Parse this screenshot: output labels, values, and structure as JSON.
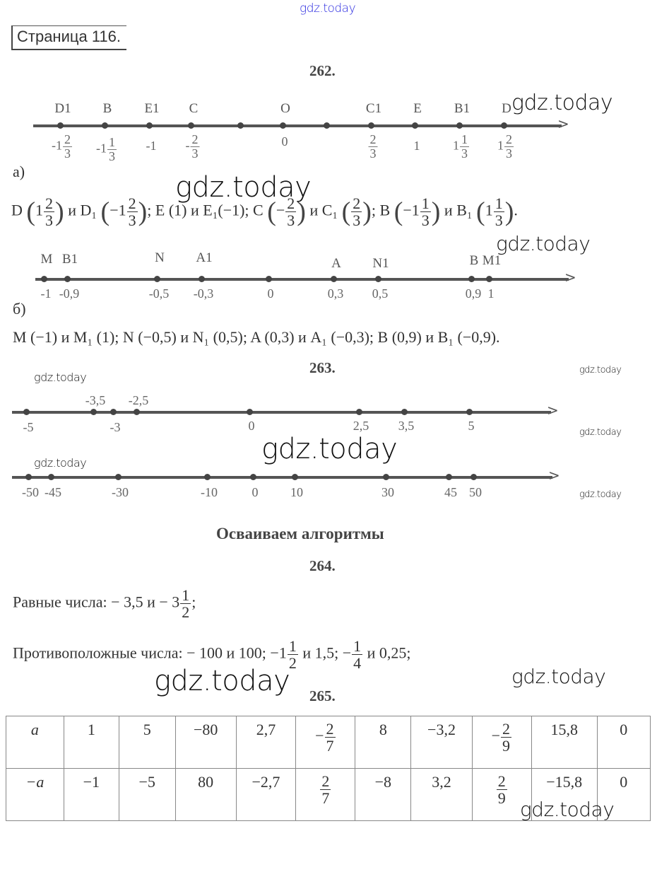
{
  "header": {
    "watermark_top": "gdz.today",
    "page_label": "Страница 116."
  },
  "watermark": "gdz.today",
  "task262": {
    "title": "262.",
    "part_a": {
      "label": "а)",
      "line": [
        {
          "name": "D1",
          "val": {
            "w": "-1",
            "n": "2",
            "d": "3"
          }
        },
        {
          "name": "B",
          "val": {
            "w": "-1",
            "n": "1",
            "d": "3"
          }
        },
        {
          "name": "E1",
          "val": "-1"
        },
        {
          "name": "C",
          "val": {
            "w": "-",
            "n": "2",
            "d": "3"
          }
        },
        {
          "name": "",
          "val": ""
        },
        {
          "name": "O",
          "val": "0"
        },
        {
          "name": "",
          "val": ""
        },
        {
          "name": "C1",
          "val": {
            "w": "",
            "n": "2",
            "d": "3"
          }
        },
        {
          "name": "E",
          "val": "1"
        },
        {
          "name": "B1",
          "val": {
            "w": "1",
            "n": "1",
            "d": "3"
          }
        },
        {
          "name": "D",
          "val": {
            "w": "1",
            "n": "2",
            "d": "3"
          }
        }
      ],
      "answer": [
        "D ",
        "(",
        "1",
        {
          "n": "2",
          "d": "3"
        },
        ")",
        " и D₁ ",
        "(",
        "−1",
        {
          "n": "2",
          "d": "3"
        },
        ")",
        "; E (1) и E₁(−1); C ",
        "(",
        "−",
        {
          "n": "2",
          "d": "3"
        },
        ")",
        " и C₁ ",
        "(",
        {
          "n": "2",
          "d": "3"
        },
        ")",
        "; B ",
        "(",
        "−1",
        {
          "n": "1",
          "d": "3"
        },
        ")",
        " и B₁ ",
        "(",
        "1",
        {
          "n": "1",
          "d": "3"
        },
        ")",
        "."
      ]
    },
    "part_b": {
      "label": "б)",
      "line": [
        {
          "name": "M",
          "val": "-1"
        },
        {
          "name": "B1",
          "val": "-0,9"
        },
        {
          "name": "N",
          "val": "-0,5"
        },
        {
          "name": "A1",
          "val": "-0,3"
        },
        {
          "name": "",
          "val": "0"
        },
        {
          "name": "A",
          "val": "0,3"
        },
        {
          "name": "N1",
          "val": "0,5"
        },
        {
          "name": "B",
          "val": "0,9"
        },
        {
          "name": "M1",
          "val": "1"
        }
      ],
      "answer": [
        "M (−1) и M₁ (1);  N (−0,5) и N₁ (0,5); A (0,3) и A₁ (−0,3); B (0,9) и B₁ (−0,9)."
      ]
    }
  },
  "task263": {
    "title": "263.",
    "line1": [
      {
        "val": "-5"
      },
      {
        "val": "-3,5"
      },
      {
        "val": "-3"
      },
      {
        "val": "-2,5"
      },
      {
        "val": "0"
      },
      {
        "val": "2,5"
      },
      {
        "val": "3,5"
      },
      {
        "val": "5"
      }
    ],
    "line2": [
      {
        "val": "-50"
      },
      {
        "val": "-45"
      },
      {
        "val": "-30"
      },
      {
        "val": "-10"
      },
      {
        "val": "0"
      },
      {
        "val": "10"
      },
      {
        "val": "30"
      },
      {
        "val": "45"
      },
      {
        "val": "50"
      }
    ]
  },
  "section_title": "Осваиваем алгоритмы",
  "task264": {
    "title": "264.",
    "equal": [
      "Равные числа:  − 3,5 и − 3",
      {
        "n": "1",
        "d": "2"
      },
      ";"
    ],
    "opposite": [
      "Противоположные числа:  − 100 и 100;  −1",
      {
        "n": "1",
        "d": "2"
      },
      " и 1,5;  −",
      {
        "n": "1",
        "d": "4"
      },
      " и 0,25;"
    ]
  },
  "task265": {
    "title": "265.",
    "rows": [
      [
        "a",
        "1",
        "5",
        "−80",
        "2,7",
        [
          "−",
          {
            "n": "2",
            "d": "7"
          }
        ],
        "8",
        "−3,2",
        [
          "−",
          {
            "n": "2",
            "d": "9"
          }
        ],
        "15,8",
        "0"
      ],
      [
        "−a",
        "−1",
        "−5",
        "80",
        "−2,7",
        [
          {
            "n": "2",
            "d": "7"
          }
        ],
        "−8",
        "3,2",
        [
          {
            "n": "2",
            "d": "9"
          }
        ],
        "−15,8",
        "0"
      ]
    ]
  }
}
